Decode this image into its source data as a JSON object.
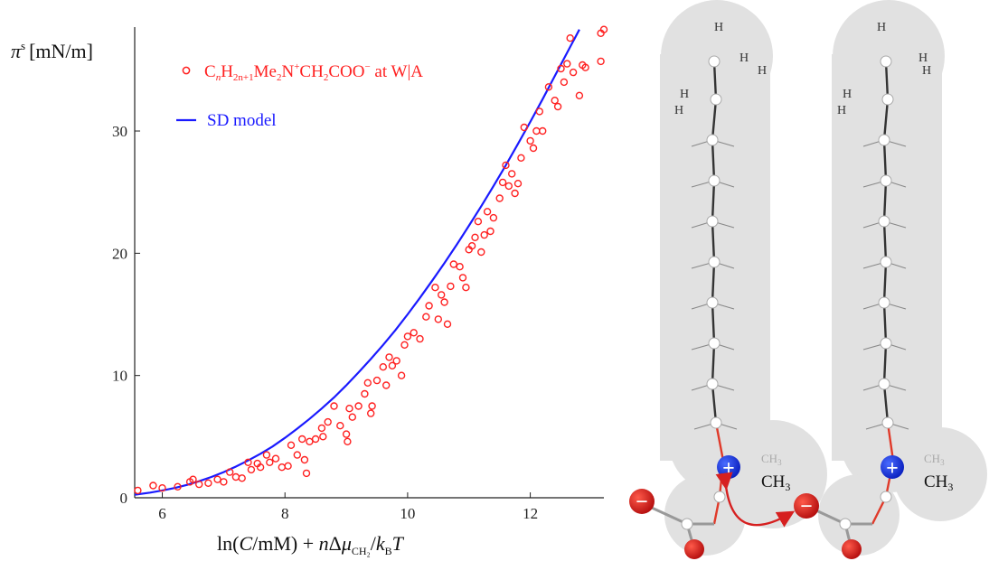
{
  "chart_data": {
    "type": "scatter",
    "ylabel": {
      "main": "π",
      "sup": "s",
      "unit": "[mN/m]"
    },
    "xlabel": {
      "p1": "ln(",
      "C": "C",
      "p2": "/mM) + ",
      "n": "n",
      "delta": "Δ",
      "mu": "μ",
      "mu_sub": "CH₂",
      "p3": "/",
      "k": "k",
      "k_sub": "B",
      "T": "T"
    },
    "xlim": [
      5.55,
      13.2
    ],
    "ylim": [
      0,
      38.5
    ],
    "x_ticks": [
      6,
      8,
      10,
      12
    ],
    "y_ticks": [
      0,
      10,
      20,
      30
    ],
    "grid": false,
    "legend_position": "top-left",
    "legend": {
      "experimental": {
        "C": "C",
        "n_sub": "n",
        "H": "H",
        "h_sub": "2n+1",
        "Me": "Me",
        "me_sub": "2",
        "N": "N",
        "plus": "+",
        "CH": "CH",
        "ch_sub": "2",
        "COO": "COO",
        "minus": "−",
        "tail": " at W|A"
      },
      "model": "SD model"
    },
    "series": [
      {
        "kind": "experimental",
        "color": "#ff2020",
        "marker": "open-circle",
        "points": [
          [
            5.6,
            0.6
          ],
          [
            5.85,
            1.0
          ],
          [
            6.0,
            0.8
          ],
          [
            6.25,
            0.9
          ],
          [
            6.45,
            1.3
          ],
          [
            6.5,
            1.5
          ],
          [
            6.6,
            1.1
          ],
          [
            6.75,
            1.2
          ],
          [
            6.9,
            1.5
          ],
          [
            7.0,
            1.3
          ],
          [
            7.1,
            2.1
          ],
          [
            7.2,
            1.7
          ],
          [
            7.3,
            1.6
          ],
          [
            7.4,
            2.9
          ],
          [
            7.45,
            2.3
          ],
          [
            7.55,
            2.8
          ],
          [
            7.6,
            2.5
          ],
          [
            7.7,
            3.5
          ],
          [
            7.75,
            2.9
          ],
          [
            7.85,
            3.2
          ],
          [
            7.95,
            2.5
          ],
          [
            8.05,
            2.6
          ],
          [
            8.1,
            4.3
          ],
          [
            8.2,
            3.5
          ],
          [
            8.28,
            4.8
          ],
          [
            8.32,
            3.1
          ],
          [
            8.35,
            2.0
          ],
          [
            8.4,
            4.6
          ],
          [
            8.5,
            4.8
          ],
          [
            8.6,
            5.7
          ],
          [
            8.62,
            5.0
          ],
          [
            8.7,
            6.2
          ],
          [
            8.8,
            7.5
          ],
          [
            8.9,
            5.9
          ],
          [
            9.0,
            5.2
          ],
          [
            9.02,
            4.6
          ],
          [
            9.05,
            7.3
          ],
          [
            9.1,
            6.6
          ],
          [
            9.2,
            7.5
          ],
          [
            9.3,
            8.5
          ],
          [
            9.35,
            9.4
          ],
          [
            9.4,
            6.9
          ],
          [
            9.42,
            7.5
          ],
          [
            9.5,
            9.6
          ],
          [
            9.6,
            10.7
          ],
          [
            9.65,
            9.2
          ],
          [
            9.7,
            11.5
          ],
          [
            9.75,
            10.8
          ],
          [
            9.82,
            11.2
          ],
          [
            9.9,
            10.0
          ],
          [
            9.95,
            12.5
          ],
          [
            10.0,
            13.2
          ],
          [
            10.1,
            13.5
          ],
          [
            10.2,
            13.0
          ],
          [
            10.3,
            14.8
          ],
          [
            10.35,
            15.7
          ],
          [
            10.45,
            17.2
          ],
          [
            10.5,
            14.6
          ],
          [
            10.55,
            16.6
          ],
          [
            10.6,
            16.0
          ],
          [
            10.65,
            14.2
          ],
          [
            10.7,
            17.3
          ],
          [
            10.75,
            19.1
          ],
          [
            10.85,
            18.9
          ],
          [
            10.9,
            18.0
          ],
          [
            10.95,
            17.2
          ],
          [
            11.0,
            20.3
          ],
          [
            11.05,
            20.6
          ],
          [
            11.1,
            21.3
          ],
          [
            11.15,
            22.6
          ],
          [
            11.2,
            20.1
          ],
          [
            11.25,
            21.5
          ],
          [
            11.3,
            23.4
          ],
          [
            11.35,
            21.8
          ],
          [
            11.4,
            22.9
          ],
          [
            11.5,
            24.5
          ],
          [
            11.55,
            25.8
          ],
          [
            11.6,
            27.2
          ],
          [
            11.65,
            25.5
          ],
          [
            11.7,
            26.5
          ],
          [
            11.75,
            24.9
          ],
          [
            11.8,
            25.7
          ],
          [
            11.85,
            27.8
          ],
          [
            11.9,
            30.3
          ],
          [
            12.0,
            29.2
          ],
          [
            12.05,
            28.6
          ],
          [
            12.1,
            30.0
          ],
          [
            12.15,
            31.6
          ],
          [
            12.2,
            30.0
          ],
          [
            12.3,
            33.6
          ],
          [
            12.4,
            32.5
          ],
          [
            12.45,
            32.0
          ],
          [
            12.5,
            35.1
          ],
          [
            12.55,
            34.0
          ],
          [
            12.6,
            35.5
          ],
          [
            12.65,
            37.6
          ],
          [
            12.7,
            34.8
          ],
          [
            12.8,
            32.9
          ],
          [
            12.85,
            35.4
          ],
          [
            12.9,
            35.2
          ],
          [
            13.15,
            35.7
          ],
          [
            13.15,
            38.0
          ],
          [
            13.2,
            38.3
          ]
        ]
      },
      {
        "kind": "model",
        "color": "#1a1aff",
        "line_x": [
          5.55,
          5.8,
          6.0,
          6.2,
          6.4,
          6.6,
          6.8,
          7.0,
          7.2,
          7.4,
          7.6,
          7.8,
          8.0,
          8.2,
          8.4,
          8.6,
          8.8,
          9.0,
          9.2,
          9.4,
          9.6,
          9.8,
          10.0,
          10.2,
          10.4,
          10.6,
          10.8,
          11.0,
          11.2,
          11.4,
          11.6,
          11.8,
          12.0,
          12.2,
          12.4,
          12.6,
          12.8,
          13.0,
          13.2
        ],
        "line_y": [
          0.25,
          0.42,
          0.6,
          0.8,
          1.05,
          1.35,
          1.7,
          2.1,
          2.55,
          3.05,
          3.6,
          4.2,
          4.9,
          5.65,
          6.45,
          7.3,
          8.2,
          9.2,
          10.25,
          11.35,
          12.5,
          13.7,
          15.0,
          16.35,
          17.75,
          19.2,
          20.7,
          22.25,
          23.85,
          25.5,
          27.2,
          28.95,
          30.75,
          32.6,
          34.5,
          36.4,
          38.3,
          40.2,
          42.1
        ]
      }
    ]
  },
  "diagram": {
    "hydrogen_label": "H",
    "methyl": {
      "C": "CH",
      "sub": "3"
    },
    "plus_symbol": "+",
    "minus_symbol": "−"
  }
}
